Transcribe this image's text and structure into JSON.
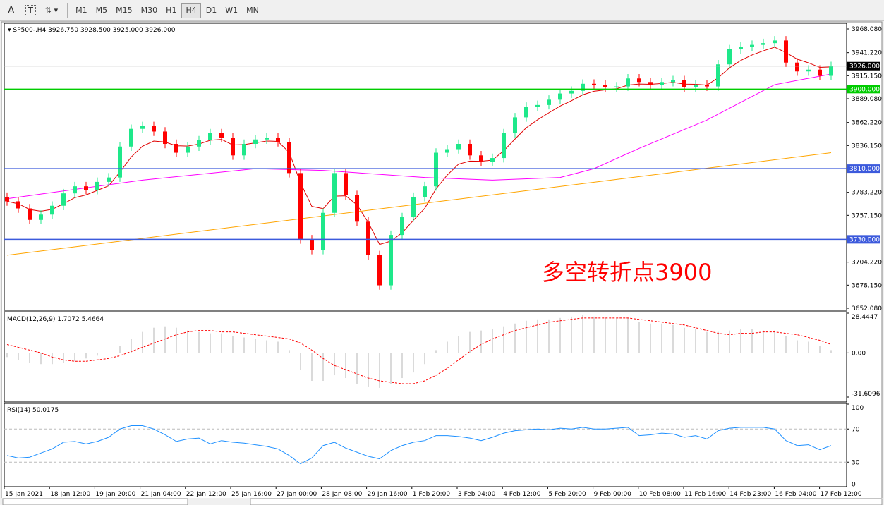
{
  "toolbar": {
    "text_tool": "A",
    "textbox_tool": "T",
    "timeframes": [
      "M1",
      "M5",
      "M15",
      "M30",
      "H1",
      "H4",
      "D1",
      "W1",
      "MN"
    ],
    "active": "H4"
  },
  "chart_data": {
    "type": "candlestick",
    "title": "SP500-,H4  3926.750 3928.500 3925.000 3926.000",
    "colors": {
      "bull": "#1ee88a",
      "bear": "#ff0000",
      "ma_fast": "#e00000",
      "ma_mid": "#ff00ff",
      "ma_slow": "#ffa500",
      "level_green": "#00cc00",
      "level_blue": "#3c5adc",
      "annotation": "#ff0000"
    },
    "ylim": [
      3652.08,
      3968.08
    ],
    "price_ticks": [
      "3968.080",
      "3941.220",
      "3915.150",
      "3889.080",
      "3862.220",
      "3836.150",
      "3783.220",
      "3757.150",
      "3704.220",
      "3678.150",
      "3652.080"
    ],
    "x_ticks": [
      "15 Jan 2021",
      "18 Jan 12:00",
      "19 Jan 20:00",
      "21 Jan 04:00",
      "22 Jan 12:00",
      "25 Jan 16:00",
      "27 Jan 00:00",
      "28 Jan 08:00",
      "29 Jan 16:00",
      "1 Feb 20:00",
      "3 Feb 04:00",
      "4 Feb 12:00",
      "5 Feb 20:00",
      "9 Feb 00:00",
      "10 Feb 08:00",
      "11 Feb 16:00",
      "14 Feb 23:00",
      "16 Feb 04:00",
      "17 Feb 12:00"
    ],
    "close": [
      3773,
      3765,
      3752,
      3758,
      3768,
      3782,
      3790,
      3786,
      3795,
      3800,
      3835,
      3855,
      3858,
      3852,
      3838,
      3828,
      3835,
      3842,
      3850,
      3845,
      3825,
      3838,
      3843,
      3845,
      3840,
      3805,
      3730,
      3718,
      3760,
      3805,
      3780,
      3750,
      3712,
      3678,
      3735,
      3755,
      3778,
      3790,
      3828,
      3832,
      3838,
      3825,
      3818,
      3822,
      3850,
      3868,
      3880,
      3882,
      3888,
      3895,
      3898,
      3906,
      3905,
      3902,
      3903,
      3912,
      3908,
      3905,
      3908,
      3910,
      3902,
      3905,
      3903,
      3928,
      3945,
      3948,
      3950,
      3952,
      3955,
      3930,
      3920,
      3922,
      3915,
      3926
    ],
    "ma_mid": [
      [
        0,
        3776
      ],
      [
        12,
        3797
      ],
      [
        22,
        3810
      ],
      [
        28,
        3808
      ],
      [
        37,
        3800
      ],
      [
        43,
        3797
      ],
      [
        49,
        3800
      ],
      [
        52,
        3810
      ],
      [
        56,
        3833
      ],
      [
        62,
        3865
      ],
      [
        68,
        3905
      ],
      [
        73,
        3917
      ]
    ],
    "ma_slow": [
      [
        0,
        3712
      ],
      [
        73,
        3828
      ]
    ],
    "levels": [
      {
        "label": "3900.000",
        "value": 3900,
        "color": "green"
      },
      {
        "label": "3810.000",
        "value": 3810,
        "color": "blue"
      },
      {
        "label": "3730.000",
        "value": 3730,
        "color": "blue"
      }
    ],
    "current_price": {
      "label": "3926.000",
      "value": 3926
    },
    "annotation": "多空转折点3900",
    "macd": {
      "label": "MACD(12,26,9) 1.7072 5.4664",
      "ylim": [
        -31.6096,
        28.4447
      ],
      "ticks": [
        "28.4447",
        "0.00",
        "-31.6096"
      ],
      "main": [
        -3,
        -5,
        -7,
        -8,
        -8,
        -7,
        -6,
        -4,
        -2,
        0,
        5,
        10,
        15,
        18,
        19,
        18,
        16,
        15,
        14,
        14,
        12,
        11,
        10,
        9,
        8,
        2,
        -12,
        -20,
        -20,
        -16,
        -18,
        -22,
        -24,
        -25,
        -22,
        -18,
        -14,
        -8,
        2,
        8,
        12,
        15,
        16,
        17,
        19,
        21,
        23,
        24,
        24,
        25,
        26,
        27,
        26,
        25,
        25,
        25,
        22,
        21,
        21,
        20,
        18,
        17,
        15,
        15,
        16,
        17,
        17,
        16,
        16,
        12,
        9,
        8,
        5,
        2
      ],
      "signal": [
        6,
        4,
        2,
        0,
        -3,
        -5,
        -6,
        -6,
        -5,
        -4,
        -2,
        1,
        4,
        7,
        10,
        13,
        15,
        16,
        16,
        15,
        15,
        14,
        13,
        12,
        11,
        10,
        7,
        2,
        -4,
        -9,
        -12,
        -15,
        -18,
        -20,
        -21,
        -22,
        -22,
        -20,
        -16,
        -11,
        -5,
        1,
        6,
        10,
        13,
        16,
        18,
        20,
        22,
        23,
        24,
        25,
        25,
        25,
        25,
        25,
        24,
        23,
        22,
        21,
        20,
        18,
        16,
        14,
        13,
        14,
        14,
        15,
        15,
        14,
        13,
        11,
        9,
        6
      ]
    },
    "rsi": {
      "label": "RSI(14) 50.0175",
      "ylim": [
        0,
        100
      ],
      "ticks": [
        "100",
        "70",
        "30",
        "0"
      ],
      "color": "#1e90ff",
      "values": [
        38,
        35,
        36,
        41,
        46,
        54,
        55,
        52,
        55,
        60,
        70,
        74,
        74,
        70,
        63,
        55,
        58,
        59,
        52,
        56,
        54,
        53,
        51,
        49,
        46,
        38,
        28,
        35,
        50,
        54,
        47,
        42,
        37,
        34,
        44,
        50,
        54,
        56,
        62,
        62,
        61,
        59,
        56,
        60,
        65,
        68,
        69,
        70,
        69,
        71,
        70,
        72,
        70,
        70,
        71,
        72,
        62,
        63,
        65,
        64,
        60,
        62,
        58,
        68,
        71,
        72,
        72,
        72,
        70,
        56,
        50,
        51,
        45,
        50
      ]
    }
  }
}
